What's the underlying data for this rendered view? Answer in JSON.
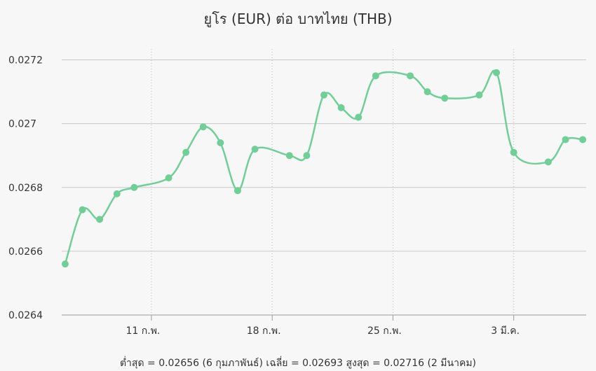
{
  "chart_data": {
    "type": "line",
    "title": "ยูโร (EUR) ต่อ บาทไทย (THB)",
    "xlabel": "",
    "ylabel": "",
    "ylim": [
      0.0264,
      0.0273
    ],
    "y_ticks": [
      {
        "value": 0.0264,
        "label": "0.0264"
      },
      {
        "value": 0.0266,
        "label": "0.0266"
      },
      {
        "value": 0.0268,
        "label": "0.0268"
      },
      {
        "value": 0.027,
        "label": "0.027"
      },
      {
        "value": 0.0272,
        "label": "0.0272"
      }
    ],
    "x_ticks": [
      {
        "x": 5,
        "label": "11 ก.พ."
      },
      {
        "x": 12,
        "label": "18 ก.พ."
      },
      {
        "x": 19,
        "label": "25 ก.พ."
      },
      {
        "x": 26,
        "label": "3 มี.ค."
      }
    ],
    "xlim": [
      -0.2,
      30.2
    ],
    "grid": true,
    "color": "#6fcf97",
    "series": [
      {
        "name": "",
        "points": [
          {
            "x": 0,
            "y": 0.02656
          },
          {
            "x": 1,
            "y": 0.02673
          },
          {
            "x": 2,
            "y": 0.0267
          },
          {
            "x": 3,
            "y": 0.02678
          },
          {
            "x": 4,
            "y": 0.0268
          },
          {
            "x": 6,
            "y": 0.02683
          },
          {
            "x": 7,
            "y": 0.02691
          },
          {
            "x": 8,
            "y": 0.02699
          },
          {
            "x": 9,
            "y": 0.02694
          },
          {
            "x": 10,
            "y": 0.02679
          },
          {
            "x": 11,
            "y": 0.02692
          },
          {
            "x": 13,
            "y": 0.0269
          },
          {
            "x": 14,
            "y": 0.0269
          },
          {
            "x": 15,
            "y": 0.02709
          },
          {
            "x": 16,
            "y": 0.02705
          },
          {
            "x": 17,
            "y": 0.02702
          },
          {
            "x": 18,
            "y": 0.02715
          },
          {
            "x": 20,
            "y": 0.02715
          },
          {
            "x": 21,
            "y": 0.0271
          },
          {
            "x": 22,
            "y": 0.02708
          },
          {
            "x": 24,
            "y": 0.02709
          },
          {
            "x": 25,
            "y": 0.02716
          },
          {
            "x": 26,
            "y": 0.02691
          },
          {
            "x": 28,
            "y": 0.02688
          },
          {
            "x": 29,
            "y": 0.02695
          },
          {
            "x": 30,
            "y": 0.02695
          }
        ]
      }
    ],
    "summary": "ต่ำสุด = 0.02656 (6 กุมภาพันธ์) เฉลี่ย = 0.02693 สูงสุด = 0.02716 (2 มีนาคม)"
  }
}
